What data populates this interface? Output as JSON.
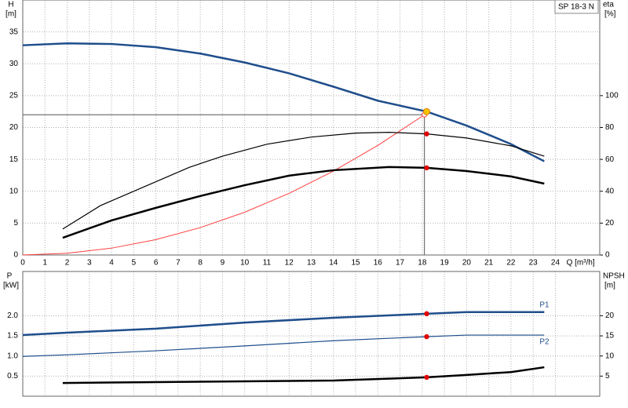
{
  "chart_data": [
    {
      "type": "line",
      "title": "SP 18-3 N",
      "y_label": "H",
      "y_unit": "[m]",
      "y2_label": "eta",
      "y2_unit": "[%]",
      "x_label": "Q [m³/h]",
      "xlim": [
        0,
        26
      ],
      "xticks": [
        0,
        1,
        2,
        3,
        4,
        5,
        6,
        7,
        8,
        9,
        10,
        11,
        12,
        13,
        14,
        15,
        16,
        17,
        18,
        19,
        20,
        21,
        22,
        23,
        24
      ],
      "ylim": [
        0,
        40
      ],
      "yticks": [
        0,
        5,
        10,
        15,
        20,
        25,
        30,
        35
      ],
      "y2lim": [
        0,
        160
      ],
      "y2ticks": [
        0,
        20,
        40,
        60,
        80,
        100
      ],
      "grid": true,
      "operating_point": {
        "x": 18.1,
        "y": 22
      },
      "duty_point": {
        "x": 18.2,
        "y": 22.5,
        "color": "#f5c400"
      },
      "series": [
        {
          "color": "#1f4e8c",
          "width": 2.5,
          "x": [
            0,
            2,
            4,
            6,
            8,
            10,
            12,
            14,
            16,
            18.2,
            20,
            22,
            23.5
          ],
          "values": [
            32.9,
            33.2,
            33.1,
            32.6,
            31.6,
            30.2,
            28.5,
            26.4,
            24.2,
            22.5,
            20.3,
            17.4,
            14.7
          ]
        },
        {
          "color": "#ff4040",
          "width": 1,
          "x": [
            0,
            2,
            4,
            6,
            8,
            10,
            12,
            14,
            16,
            18.1
          ],
          "values": [
            0,
            0.27,
            1.07,
            2.42,
            4.3,
            6.71,
            9.67,
            13.16,
            17.19,
            22
          ]
        },
        {
          "color": "#000000",
          "width": 1.2,
          "axis": "y2",
          "x": [
            1.8,
            3.5,
            5.5,
            7.5,
            9,
            11,
            13,
            15,
            16.5,
            18.2,
            20,
            22,
            23.5
          ],
          "values": [
            16.3,
            31,
            43,
            55,
            62,
            69.5,
            74,
            76.5,
            77,
            76,
            73.4,
            68.5,
            62
          ],
          "marker": {
            "x": 18.2,
            "value": 76
          }
        },
        {
          "color": "#000000",
          "width": 2.5,
          "axis": "y2",
          "x": [
            1.8,
            4,
            6,
            8,
            10,
            12,
            14,
            16.5,
            18.2,
            20,
            22,
            23.5
          ],
          "values": [
            10.8,
            21.7,
            29.6,
            37,
            43.8,
            49.8,
            53.2,
            55.2,
            54.7,
            52.7,
            49.3,
            44.8
          ],
          "marker": {
            "x": 18.2,
            "value": 54.7
          }
        }
      ]
    },
    {
      "type": "line",
      "y_label": "P",
      "y_unit": "[kW]",
      "y2_label": "NPSH",
      "y2_unit": "[m]",
      "xlim": [
        0,
        26
      ],
      "xticks": [
        0,
        1,
        2,
        3,
        4,
        5,
        6,
        7,
        8,
        9,
        10,
        11,
        12,
        13,
        14,
        15,
        16,
        17,
        18,
        19,
        20,
        21,
        22,
        23,
        24
      ],
      "ylim": [
        0,
        3.1
      ],
      "yticks": [
        0.5,
        {
          "value": 1,
          "label": "1.0"
        },
        1.5,
        {
          "value": 2,
          "label": "2.0"
        }
      ],
      "y2lim": [
        0,
        31
      ],
      "y2ticks": [
        5,
        10,
        15,
        20
      ],
      "grid": true,
      "series": [
        {
          "name": "P1",
          "color": "#1f4e8c",
          "width": 2.5,
          "x": [
            0,
            2,
            6,
            10,
            14,
            18.2,
            20,
            23.5
          ],
          "values": [
            1.52,
            1.58,
            1.68,
            1.83,
            1.95,
            2.05,
            2.09,
            2.09
          ],
          "marker": {
            "x": 18.2,
            "value": 2.05
          }
        },
        {
          "name": "P2",
          "color": "#1f4e8c",
          "width": 1.2,
          "x": [
            0,
            2,
            6,
            10,
            14,
            18.2,
            20,
            23.5
          ],
          "values": [
            0.99,
            1.03,
            1.13,
            1.25,
            1.38,
            1.48,
            1.52,
            1.52
          ],
          "marker": {
            "x": 18.2,
            "value": 1.48
          }
        },
        {
          "color": "#000000",
          "width": 2.5,
          "axis": "y2",
          "x": [
            1.8,
            6,
            10,
            14,
            18.2,
            20,
            22,
            23.5
          ],
          "values": [
            3.3,
            3.5,
            3.7,
            3.9,
            4.7,
            5.3,
            6.0,
            7.2
          ],
          "marker": {
            "x": 18.2,
            "value": 4.7
          }
        }
      ]
    }
  ]
}
